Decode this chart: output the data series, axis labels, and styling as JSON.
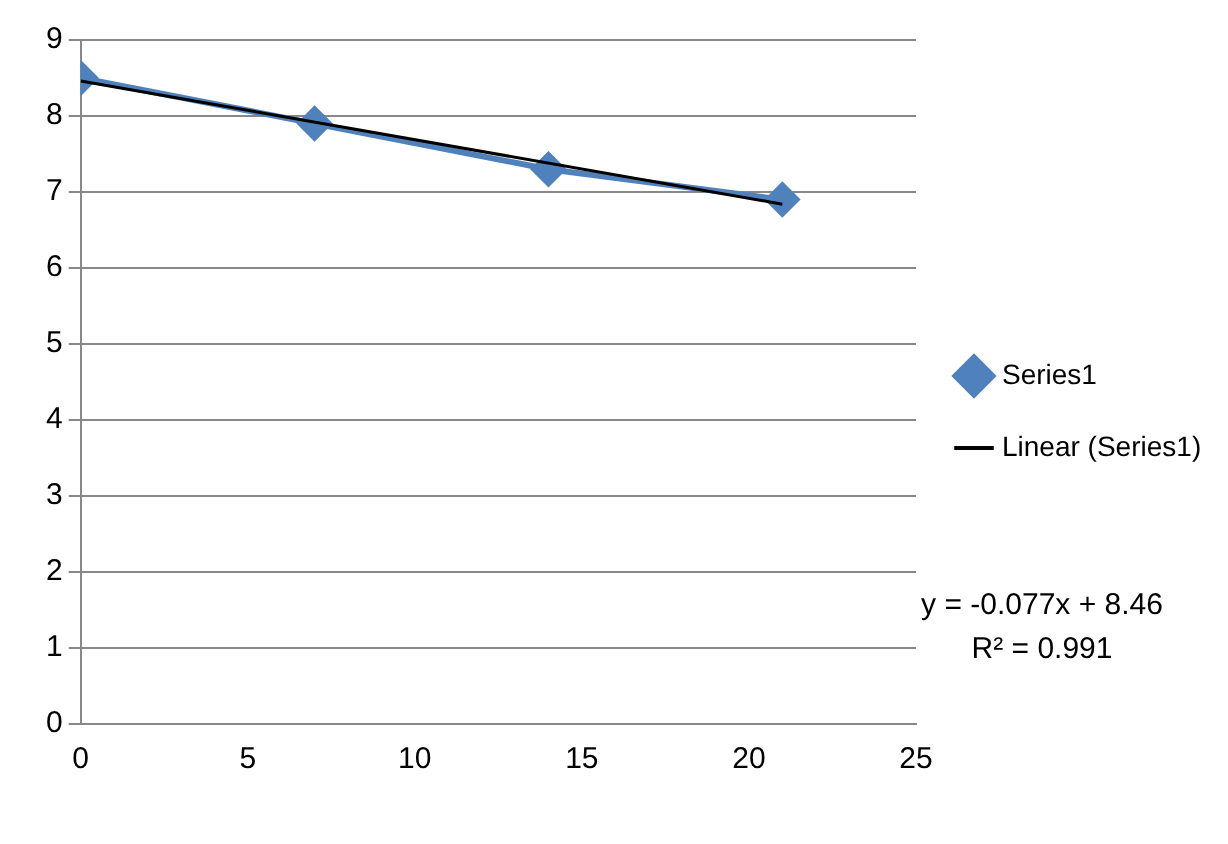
{
  "chart_data": {
    "type": "line",
    "xlim": [
      0,
      25
    ],
    "xticks": [
      0,
      5,
      10,
      15,
      20,
      25
    ],
    "ylim": [
      0,
      9
    ],
    "yticks": [
      0,
      1,
      2,
      3,
      4,
      5,
      6,
      7,
      8,
      9
    ],
    "grid": "y",
    "legend": "right",
    "annotations": [
      "y = -0.077x + 8.46",
      "R² = 0.991"
    ],
    "series": [
      {
        "name": "Series1",
        "color": "#4f81bd",
        "x": [
          0,
          7,
          14,
          21
        ],
        "values": [
          8.5,
          7.9,
          7.3,
          6.9
        ],
        "marker": "diamond"
      },
      {
        "name": "Linear (Series1)",
        "type": "line",
        "color": "#000000",
        "x": [
          0,
          21
        ],
        "values": [
          8.46,
          6.84
        ],
        "marker": "none"
      }
    ]
  }
}
